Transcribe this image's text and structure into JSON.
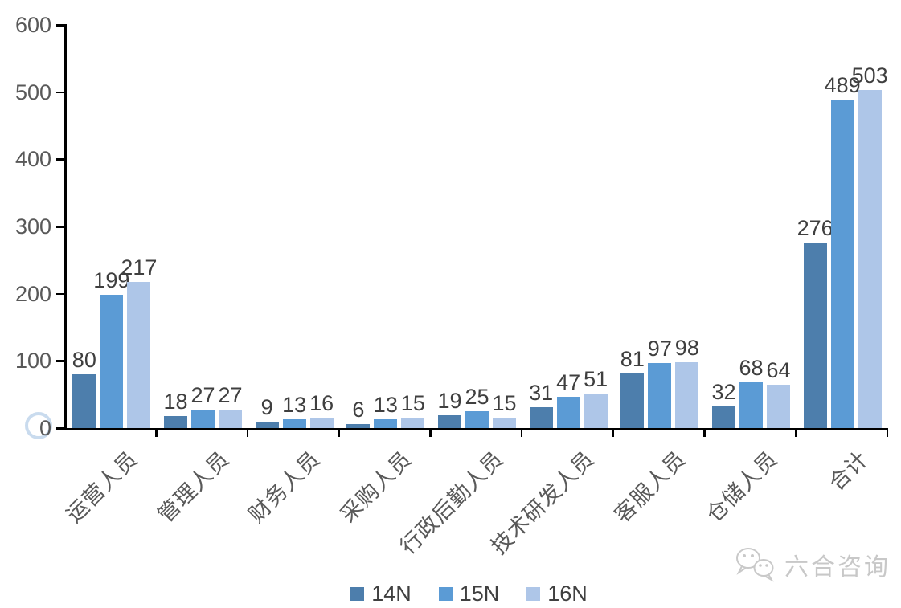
{
  "chart_data": {
    "type": "bar",
    "title": "",
    "xlabel": "",
    "ylabel": "",
    "categories": [
      "运营人员",
      "管理人员",
      "财务人员",
      "采购人员",
      "行政后勤人员",
      "技术研发人员",
      "客服人员",
      "仓储人员",
      "合计"
    ],
    "series": [
      {
        "name": "14N",
        "color": "#4D7EAC",
        "values": [
          80,
          18,
          9,
          6,
          19,
          31,
          81,
          32,
          276
        ]
      },
      {
        "name": "15N",
        "color": "#5B9BD5",
        "values": [
          199,
          27,
          13,
          13,
          25,
          47,
          97,
          68,
          489
        ]
      },
      {
        "name": "16N",
        "color": "#AEC6E8",
        "values": [
          217,
          27,
          16,
          15,
          15,
          51,
          98,
          64,
          503
        ]
      }
    ],
    "ylim": [
      0,
      600
    ],
    "yticks": [
      0,
      100,
      200,
      300,
      400,
      500,
      600
    ],
    "grid": false,
    "legend_position": "bottom",
    "data_labels": true
  },
  "watermark": {
    "icon": "wechat-icon",
    "text": "六合咨询",
    "color": "#C8C8C8"
  },
  "styles": {
    "background": "#FFFFFF",
    "axis_color": "#000000",
    "tick_label_color": "#595959",
    "data_label_color": "#3F3F3F",
    "legend_label_color": "#404040"
  }
}
